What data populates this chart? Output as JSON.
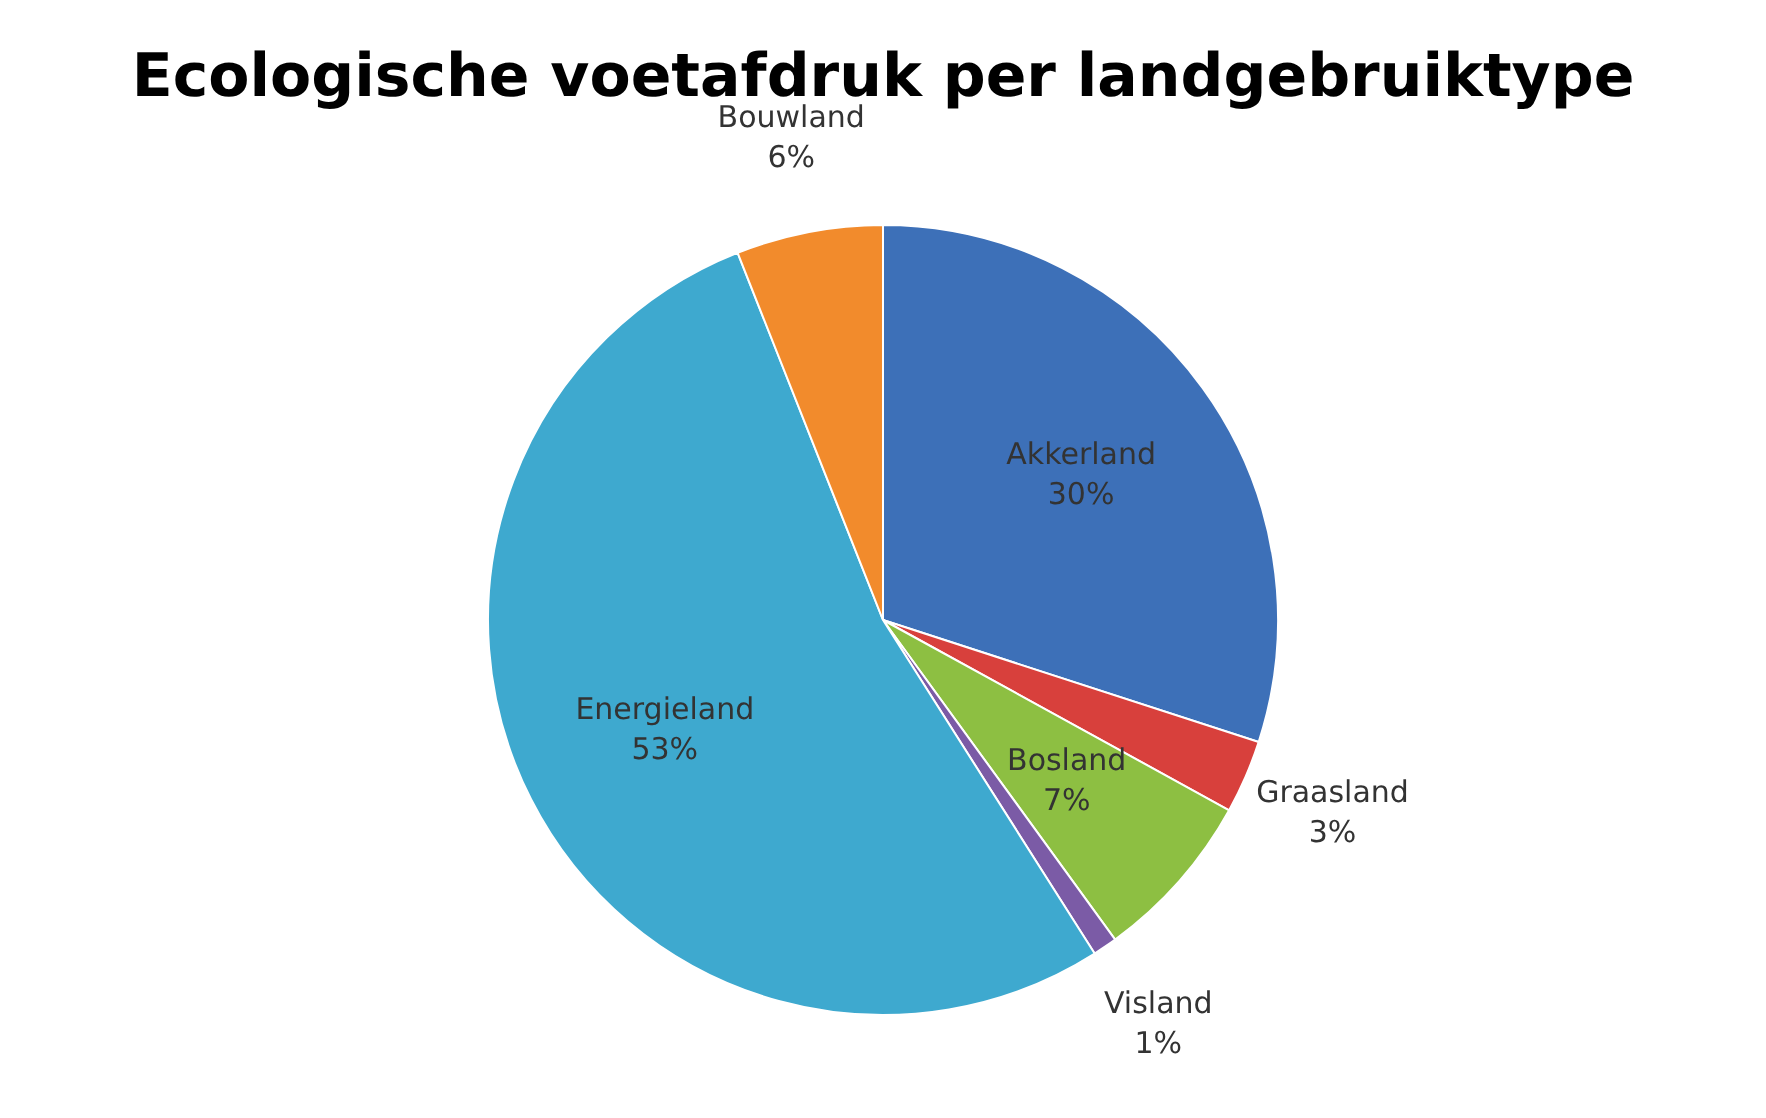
{
  "chart_data": {
    "type": "pie",
    "title": "Ecologische voetafdruk per landgebruiktype",
    "categories": [
      "Akkerland",
      "Graasland",
      "Bosland",
      "Visland",
      "Energieland",
      "Bouwland"
    ],
    "values": [
      30,
      3,
      7,
      1,
      53,
      6
    ],
    "value_labels": [
      "30%",
      "3%",
      "7%",
      "1%",
      "53%",
      "6%"
    ],
    "colors": [
      "#3d70b8",
      "#d8403c",
      "#8dbf42",
      "#7b5ba6",
      "#3ea9cf",
      "#f28b2c"
    ],
    "legend": false
  }
}
